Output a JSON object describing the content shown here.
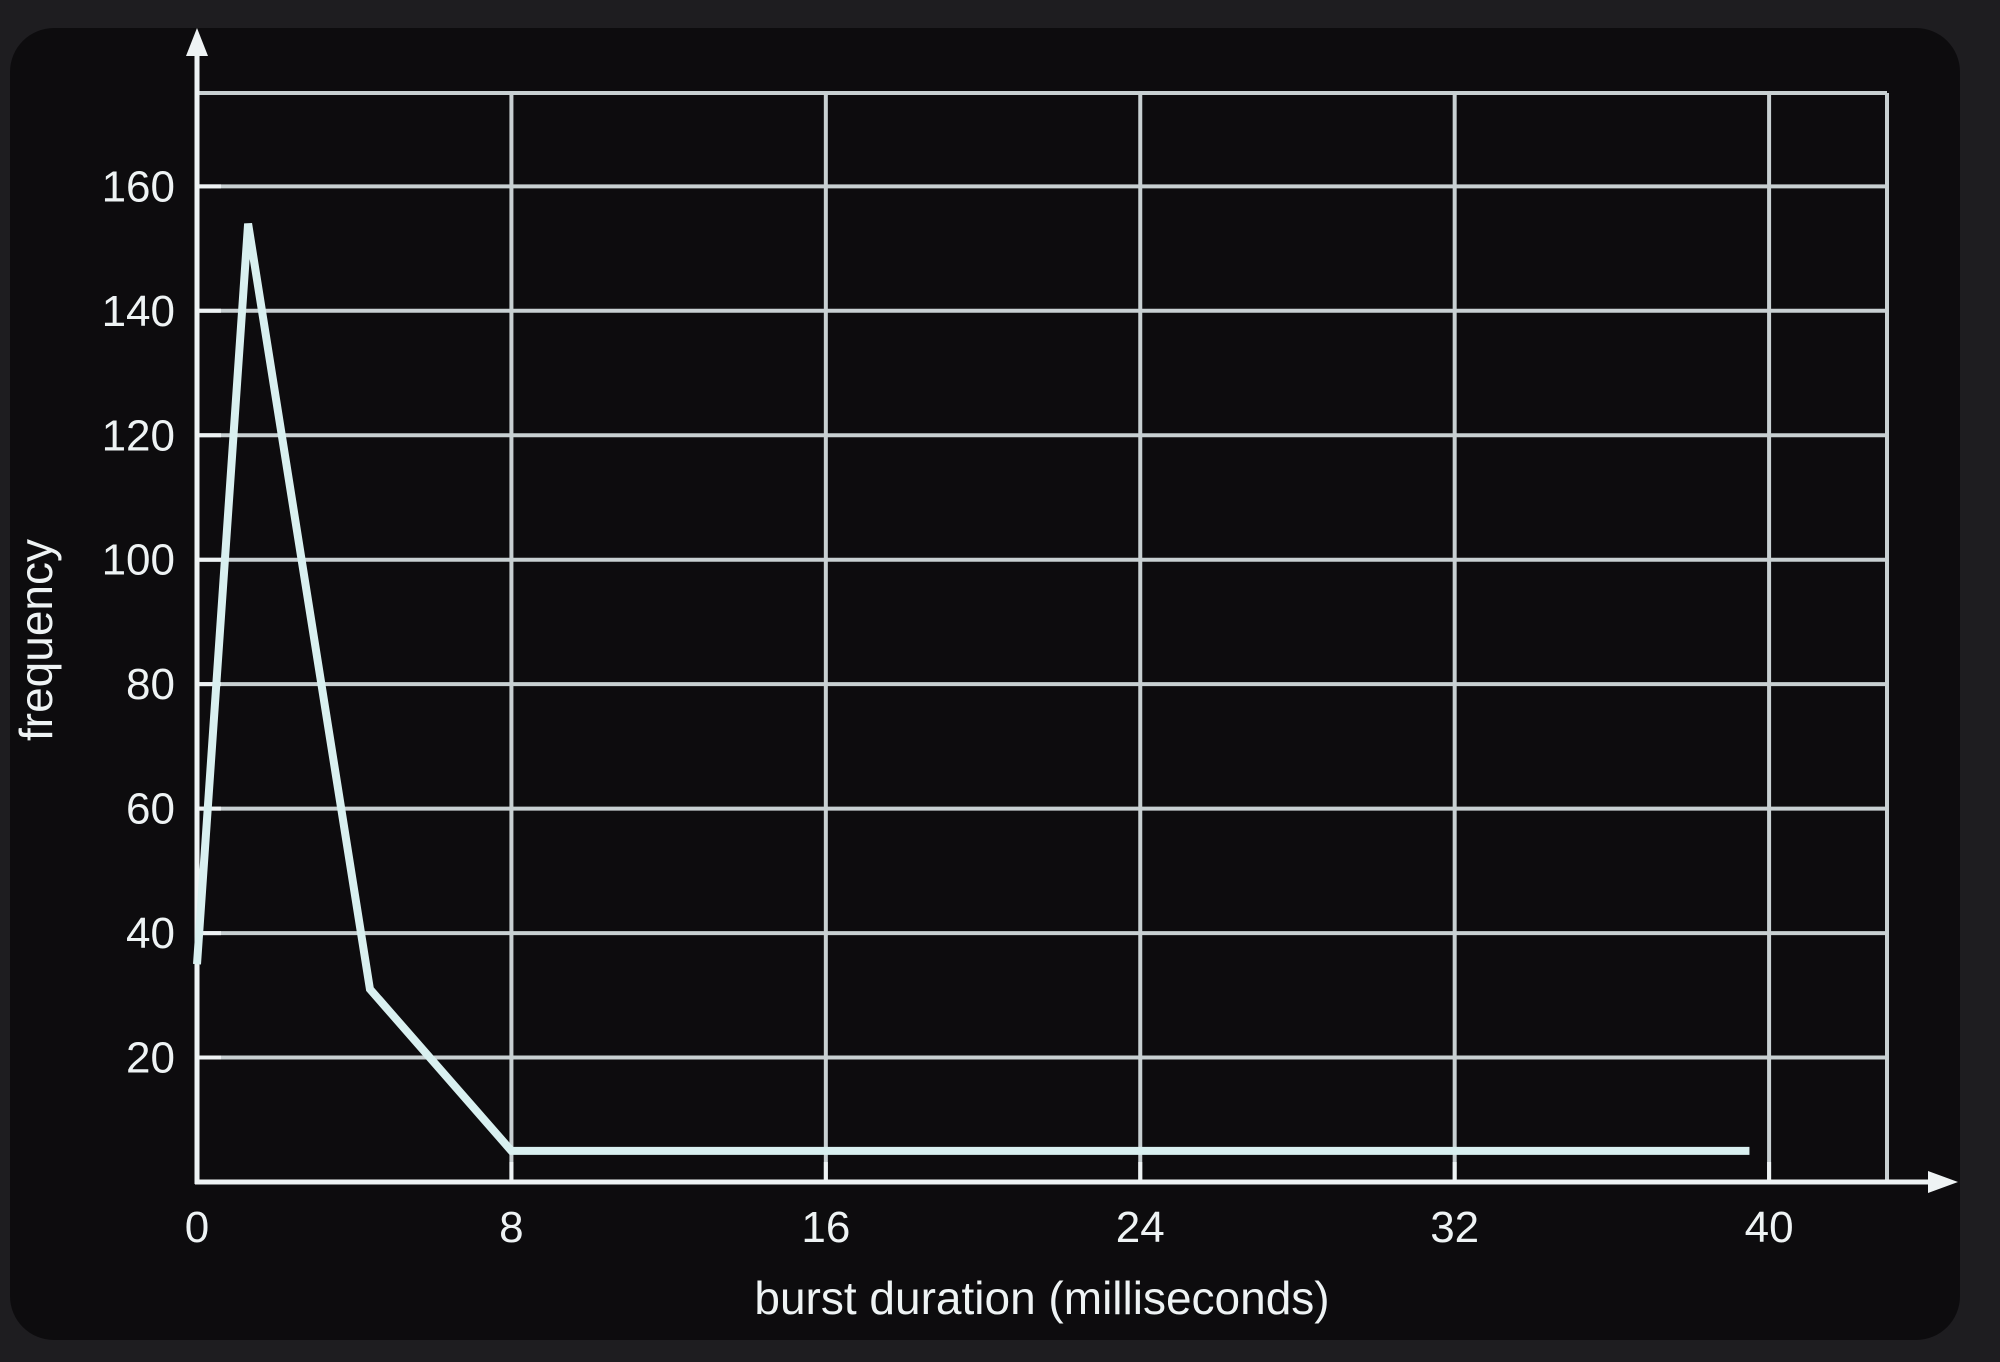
{
  "chart_data": {
    "type": "line",
    "title": "",
    "xlabel": "burst duration (milliseconds)",
    "ylabel": "frequency",
    "xlim": [
      0,
      43
    ],
    "ylim": [
      0,
      175
    ],
    "x_ticks": [
      0,
      8,
      16,
      24,
      32,
      40
    ],
    "y_ticks": [
      20,
      40,
      60,
      80,
      100,
      120,
      140,
      160
    ],
    "x_tick_labels": [
      "0",
      "8",
      "16",
      "24",
      "32",
      "40"
    ],
    "y_tick_labels": [
      "20",
      "40",
      "60",
      "80",
      "100",
      "120",
      "140",
      "160"
    ],
    "x_gridlines": [
      8,
      16,
      24,
      32,
      40,
      43
    ],
    "y_gridlines": [
      20,
      40,
      60,
      80,
      100,
      120,
      140,
      160,
      175
    ],
    "grid": true,
    "legend": "none",
    "series": [
      {
        "x": [
          0,
          1.3,
          4.4,
          8,
          39.5
        ],
        "y": [
          35,
          154,
          31,
          5,
          5
        ]
      }
    ],
    "colors": {
      "background": "#0d0c0e",
      "grid": "#c8d0d2",
      "axis": "#eef3f4",
      "line": "#d9f0f0",
      "text": "#eef3f4"
    }
  }
}
